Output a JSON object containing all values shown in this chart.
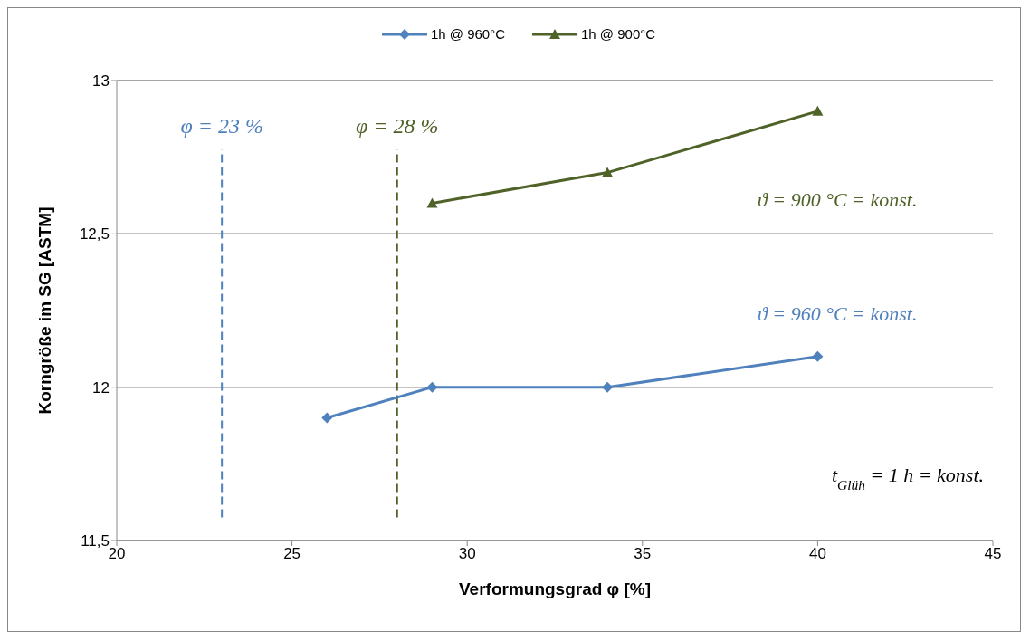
{
  "chart_data": {
    "type": "line",
    "xlabel": "Verformungsgrad φ [%]",
    "ylabel": "Korngröße im SG [ASTM]",
    "series": [
      {
        "name": "1h @ 960°C",
        "color": "#4f81bd",
        "marker": "diamond",
        "x": [
          26,
          29,
          34,
          40
        ],
        "values": [
          11.9,
          12,
          12,
          12.1
        ]
      },
      {
        "name": "1h @ 900°C",
        "color": "#4f6228",
        "marker": "triangle",
        "x": [
          29,
          34,
          40
        ],
        "values": [
          12.6,
          12.7,
          12.9
        ]
      }
    ],
    "xlim": [
      20,
      45
    ],
    "xticks": [
      20,
      25,
      30,
      35,
      40,
      45
    ],
    "ylim": [
      11.5,
      13
    ],
    "yticks": [
      {
        "value": 11.5,
        "label": "11,5"
      },
      12,
      {
        "value": 12.5,
        "label": "12,5"
      },
      13
    ],
    "grid": "y",
    "legend": "top",
    "line_style": "solid",
    "ref_lines": [
      {
        "axis": "x",
        "value": 23,
        "label": "φ = 23 %",
        "color": "#4f81bd",
        "line_style": "dashed"
      },
      {
        "axis": "x",
        "value": 28,
        "label": "φ = 28 %",
        "color": "#4f6228",
        "line_style": "dashed"
      }
    ],
    "annotations": [
      "ϑ = 960 °C = konst.",
      "ϑ = 900 °C = konst.",
      "t$_{Glüh}$ = 1 h = konst."
    ]
  }
}
